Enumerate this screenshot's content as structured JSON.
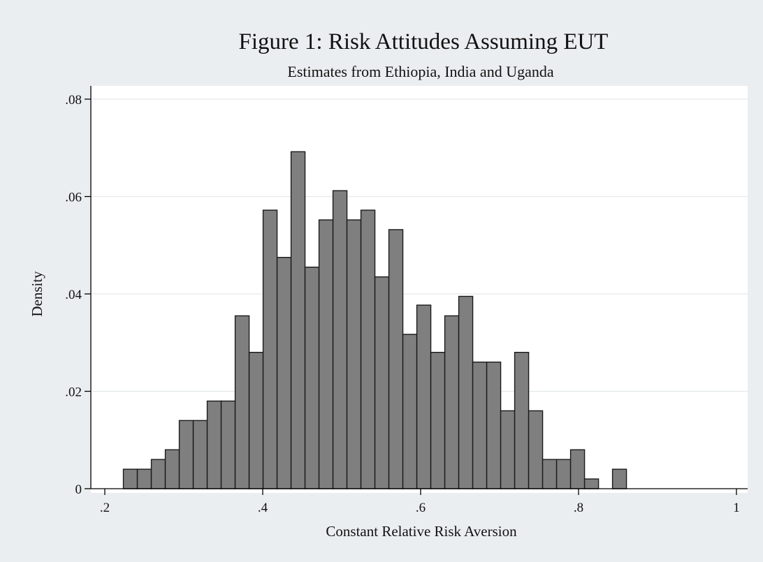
{
  "chart_data": {
    "type": "bar",
    "title": "Figure 1: Risk Attitudes Assuming EUT",
    "subtitle": "Estimates from Ethiopia, India and Uganda",
    "xlabel": "Constant Relative Risk Aversion",
    "ylabel": "Density",
    "xlim": [
      0.2,
      1.0
    ],
    "ylim": [
      0,
      0.08
    ],
    "x_ticks": [
      {
        "value": 0.2,
        "label": ".2"
      },
      {
        "value": 0.4,
        "label": ".4"
      },
      {
        "value": 0.6,
        "label": ".6"
      },
      {
        "value": 0.8,
        "label": ".8"
      },
      {
        "value": 1.0,
        "label": "1"
      }
    ],
    "y_ticks": [
      {
        "value": 0,
        "label": "0"
      },
      {
        "value": 0.02,
        "label": ".02"
      },
      {
        "value": 0.04,
        "label": ".04"
      },
      {
        "value": 0.06,
        "label": ".06"
      },
      {
        "value": 0.08,
        "label": ".08"
      }
    ],
    "grid": "horizontal",
    "bin_width": 0.0177,
    "bins": [
      {
        "start": 0.2235,
        "density": 0.004
      },
      {
        "start": 0.2412,
        "density": 0.004
      },
      {
        "start": 0.2589,
        "density": 0.006
      },
      {
        "start": 0.2766,
        "density": 0.008
      },
      {
        "start": 0.2943,
        "density": 0.014
      },
      {
        "start": 0.312,
        "density": 0.014
      },
      {
        "start": 0.3297,
        "density": 0.018
      },
      {
        "start": 0.3474,
        "density": 0.018
      },
      {
        "start": 0.3651,
        "density": 0.0355
      },
      {
        "start": 0.3828,
        "density": 0.028
      },
      {
        "start": 0.4005,
        "density": 0.0572
      },
      {
        "start": 0.4182,
        "density": 0.0475
      },
      {
        "start": 0.4359,
        "density": 0.0692
      },
      {
        "start": 0.4536,
        "density": 0.0455
      },
      {
        "start": 0.4713,
        "density": 0.0552
      },
      {
        "start": 0.489,
        "density": 0.0612
      },
      {
        "start": 0.5067,
        "density": 0.0552
      },
      {
        "start": 0.5244,
        "density": 0.0572
      },
      {
        "start": 0.5421,
        "density": 0.0435
      },
      {
        "start": 0.5598,
        "density": 0.0532
      },
      {
        "start": 0.5775,
        "density": 0.0317
      },
      {
        "start": 0.5952,
        "density": 0.0377
      },
      {
        "start": 0.6129,
        "density": 0.028
      },
      {
        "start": 0.6306,
        "density": 0.0355
      },
      {
        "start": 0.6483,
        "density": 0.0395
      },
      {
        "start": 0.666,
        "density": 0.026
      },
      {
        "start": 0.6837,
        "density": 0.026
      },
      {
        "start": 0.7014,
        "density": 0.016
      },
      {
        "start": 0.7191,
        "density": 0.028
      },
      {
        "start": 0.7368,
        "density": 0.016
      },
      {
        "start": 0.7545,
        "density": 0.006
      },
      {
        "start": 0.7722,
        "density": 0.006
      },
      {
        "start": 0.7899,
        "density": 0.008
      },
      {
        "start": 0.8076,
        "density": 0.002
      },
      {
        "start": 0.843,
        "density": 0.004
      }
    ],
    "colors": {
      "outer_background": "#ebeef0",
      "plot_background": "#ffffff",
      "bar_fill": "#7f7f7f",
      "bar_stroke": "#1a1a1a",
      "grid": "#e4e8ea",
      "axis": "#000000"
    }
  }
}
